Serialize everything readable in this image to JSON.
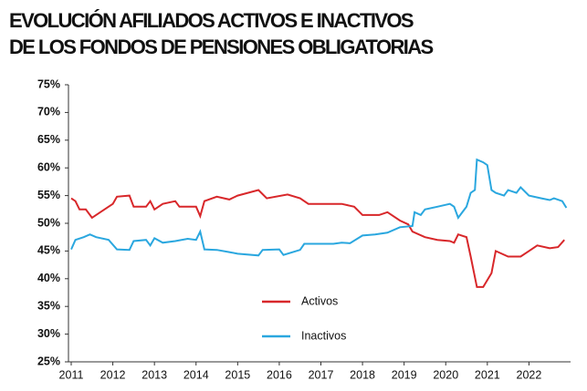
{
  "chart_data": {
    "type": "line",
    "title": "EVOLUCIÓN AFILIADOS ACTIVOS E INACTIVOS DE LOS FONDOS DE PENSIONES OBLIGATORIAS",
    "xlim": [
      2011,
      2023
    ],
    "xticks": [
      2011,
      2012,
      2013,
      2014,
      2015,
      2016,
      2017,
      2018,
      2019,
      2020,
      2021,
      2022
    ],
    "ylim": [
      25,
      75
    ],
    "yticks": [
      {
        "value": 25,
        "label": "25%"
      },
      {
        "value": 30,
        "label": "30%"
      },
      {
        "value": 35,
        "label": "35%"
      },
      {
        "value": 40,
        "label": "40%"
      },
      {
        "value": 45,
        "label": "45%"
      },
      {
        "value": 50,
        "label": "50%"
      },
      {
        "value": 55,
        "label": "55%"
      },
      {
        "value": 60,
        "label": "60%"
      },
      {
        "value": 65,
        "label": "65%"
      },
      {
        "value": 70,
        "label": "70%"
      },
      {
        "value": 75,
        "label": "75%"
      }
    ],
    "series": [
      {
        "name": "Activos",
        "color": "#d8272a",
        "x": [
          2011.0,
          2011.1,
          2011.2,
          2011.35,
          2011.5,
          2011.7,
          2012.0,
          2012.1,
          2012.4,
          2012.5,
          2012.8,
          2012.9,
          2013.0,
          2013.2,
          2013.5,
          2013.6,
          2014.0,
          2014.1,
          2014.2,
          2014.5,
          2014.8,
          2015.0,
          2015.5,
          2015.7,
          2016.2,
          2016.5,
          2016.7,
          2017.5,
          2017.8,
          2018.0,
          2018.4,
          2018.6,
          2018.9,
          2019.1,
          2019.2,
          2019.5,
          2019.8,
          2020.1,
          2020.2,
          2020.3,
          2020.5,
          2020.6,
          2020.75,
          2020.9,
          2021.1,
          2021.2,
          2021.5,
          2021.8,
          2022.0,
          2022.2,
          2022.5,
          2022.7,
          2022.85
        ],
        "values": [
          54.5,
          54,
          52.5,
          52.5,
          51,
          52,
          53.5,
          54.8,
          55,
          53,
          53,
          54,
          52.5,
          53.5,
          54,
          53,
          53,
          51.3,
          54,
          54.8,
          54.3,
          55,
          56,
          54.5,
          55.2,
          54.5,
          53.5,
          53.5,
          53,
          51.5,
          51.5,
          52,
          50.5,
          49.8,
          48.5,
          47.5,
          47,
          46.8,
          46.5,
          48,
          47.5,
          44,
          38.5,
          38.5,
          41,
          45,
          44,
          44,
          45,
          46,
          45.5,
          45.7,
          47
        ]
      },
      {
        "name": "Inactivos",
        "color": "#2aa7df",
        "x": [
          2011.0,
          2011.1,
          2011.3,
          2011.45,
          2011.6,
          2011.9,
          2012.1,
          2012.4,
          2012.5,
          2012.8,
          2012.9,
          2013.0,
          2013.2,
          2013.5,
          2013.8,
          2014.0,
          2014.1,
          2014.2,
          2014.5,
          2014.8,
          2015.0,
          2015.5,
          2015.6,
          2016.0,
          2016.1,
          2016.5,
          2016.6,
          2017.3,
          2017.5,
          2017.7,
          2018.0,
          2018.3,
          2018.6,
          2018.9,
          2019.2,
          2019.25,
          2019.4,
          2019.5,
          2019.8,
          2020.1,
          2020.2,
          2020.3,
          2020.5,
          2020.6,
          2020.7,
          2020.75,
          2020.9,
          2021.0,
          2021.1,
          2021.2,
          2021.4,
          2021.5,
          2021.7,
          2021.8,
          2022.0,
          2022.3,
          2022.5,
          2022.6,
          2022.8,
          2022.9
        ],
        "values": [
          45.3,
          47,
          47.5,
          48,
          47.5,
          47,
          45.3,
          45.2,
          46.8,
          47,
          46,
          47.3,
          46.5,
          46.8,
          47.2,
          47,
          48.5,
          45.3,
          45.2,
          44.8,
          44.5,
          44.2,
          45.2,
          45.3,
          44.3,
          45.2,
          46.3,
          46.3,
          46.5,
          46.4,
          47.8,
          48,
          48.3,
          49.3,
          49.5,
          52,
          51.5,
          52.5,
          53,
          53.5,
          53,
          51,
          53,
          55.5,
          56,
          61.5,
          61,
          60.5,
          56,
          55.5,
          55,
          56,
          55.5,
          56.5,
          55,
          54.5,
          54.2,
          54.5,
          54,
          52.8
        ]
      }
    ]
  }
}
